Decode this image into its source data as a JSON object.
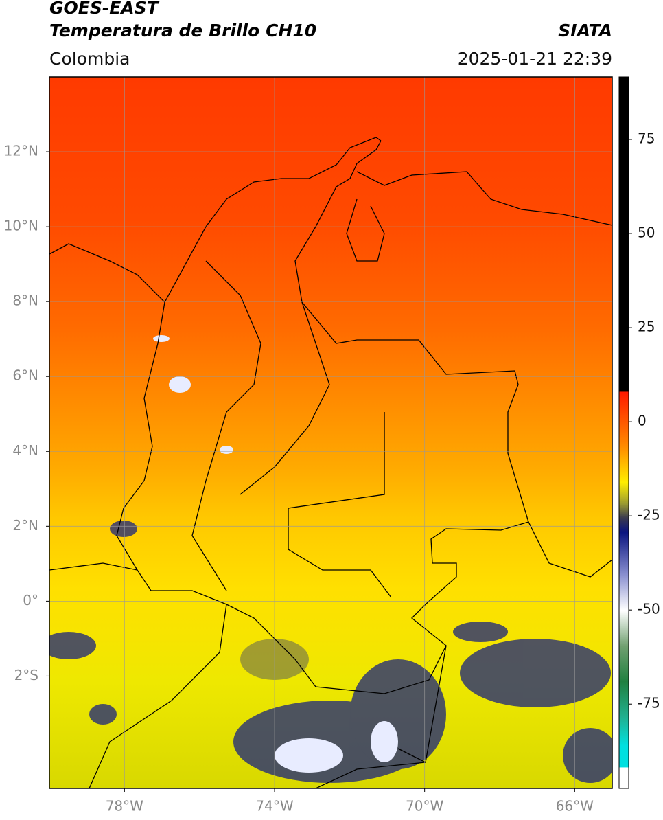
{
  "header": {
    "title": "GOES-EAST",
    "subtitle": "Temperatura de Brillo CH10",
    "region": "Colombia",
    "source": "SIATA",
    "datetime": "2025-01-21 22:39"
  },
  "map": {
    "xlim": [
      -80,
      -65
    ],
    "ylim": [
      -5,
      14
    ],
    "xticks": [
      {
        "value": -78,
        "label": "78°W"
      },
      {
        "value": -74,
        "label": "74°W"
      },
      {
        "value": -70,
        "label": "70°W"
      },
      {
        "value": -66,
        "label": "66°W"
      }
    ],
    "yticks": [
      {
        "value": 12,
        "label": "12°N"
      },
      {
        "value": 10,
        "label": "10°N"
      },
      {
        "value": 8,
        "label": "8°N"
      },
      {
        "value": 6,
        "label": "6°N"
      },
      {
        "value": 4,
        "label": "4°N"
      },
      {
        "value": 2,
        "label": "2°N"
      },
      {
        "value": 0,
        "label": "0°"
      },
      {
        "value": -2,
        "label": "2°S"
      }
    ],
    "grid": true
  },
  "colorbar": {
    "lim": [
      -97.4,
      91.6
    ],
    "ticks": [
      75,
      50,
      25,
      0,
      -25,
      -50,
      -75
    ]
  }
}
